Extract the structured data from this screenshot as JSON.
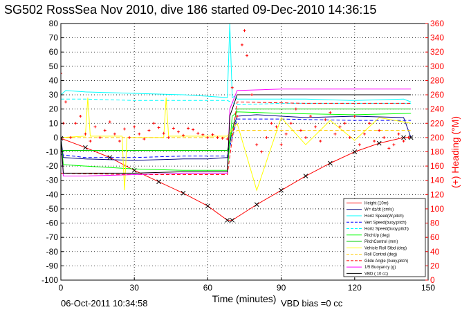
{
  "chart_data": {
    "type": "line",
    "title": "SG502 RossSea Nov 2010, dive 186 started 09-Dec-2010 14:36:15",
    "xlabel": "Time (minutes)",
    "ylabel_right": "(+) Heading (°M)",
    "xlim": [
      0,
      150
    ],
    "ylim": [
      -100,
      80
    ],
    "ylim_right": [
      0,
      360
    ],
    "xticks": [
      "0",
      "30",
      "60",
      "90",
      "120",
      "150"
    ],
    "yticks": [
      "80",
      "70",
      "60",
      "50",
      "40",
      "30",
      "20",
      "10",
      "0",
      "-10",
      "-20",
      "-30",
      "-40",
      "-50",
      "-60",
      "-70",
      "-80",
      "-90",
      "-100"
    ],
    "yticks_right": [
      "360",
      "340",
      "320",
      "300",
      "280",
      "260",
      "240",
      "220",
      "200",
      "180",
      "160",
      "140",
      "120",
      "100",
      "80",
      "60",
      "40",
      "20",
      "0"
    ],
    "grid": true,
    "legend_position": "bottom-right",
    "footer_left": "06-Oct-2011 10:34:58",
    "footer_right": "VBD bias =0 cc",
    "series": [
      {
        "name": "Height (10m)",
        "color": "#ff0000",
        "style": "solid",
        "x": [
          0,
          10,
          20,
          30,
          40,
          50,
          60,
          68,
          70,
          80,
          90,
          100,
          110,
          120,
          130,
          140,
          143
        ],
        "y": [
          -0.5,
          -7,
          -14,
          -23,
          -31,
          -39,
          -48,
          -58,
          -58,
          -47,
          -37,
          -27,
          -18,
          -10,
          -4,
          0,
          0
        ]
      },
      {
        "name": "W= dz/dt (cm/s)",
        "color": "#000080",
        "style": "solid",
        "x": [
          0,
          1,
          10,
          30,
          50,
          60,
          68,
          70,
          72,
          80,
          100,
          120,
          140,
          143
        ],
        "y": [
          0,
          -14,
          -15,
          -16,
          -15,
          -15,
          -14,
          5,
          15,
          16,
          14,
          15,
          14,
          0
        ]
      },
      {
        "name": "Horiz Speed(W,pitch)",
        "color": "#00ffff",
        "style": "solid",
        "x": [
          0,
          2,
          10,
          30,
          50,
          60,
          68,
          69,
          70,
          71,
          72,
          80,
          100,
          120,
          140,
          143
        ],
        "y": [
          30,
          33,
          32,
          31,
          30,
          29,
          28,
          80,
          28,
          29,
          27,
          27,
          27,
          26,
          27,
          25
        ]
      },
      {
        "name": "Vert Speed(buoy,pitch)",
        "color": "#0000ff",
        "style": "dashed",
        "x": [
          0,
          10,
          30,
          50,
          68,
          72,
          90,
          120,
          143
        ],
        "y": [
          -12,
          -14,
          -14,
          -13,
          -13,
          13,
          13,
          12,
          12
        ]
      },
      {
        "name": "Horiz Speed(buoy,pitch)",
        "color": "#00ffff",
        "style": "dashed",
        "x": [
          0,
          10,
          30,
          50,
          68,
          72,
          90,
          120,
          143
        ],
        "y": [
          27,
          27,
          26,
          26,
          26,
          23,
          24,
          24,
          24
        ]
      },
      {
        "name": "PitchUp (deg)",
        "color": "#00ff00",
        "style": "solid",
        "x": [
          0,
          1,
          10,
          30,
          50,
          68,
          70,
          72,
          90,
          120,
          143
        ],
        "y": [
          0,
          -19,
          -20,
          -22,
          -23,
          -23,
          15,
          18,
          17,
          16,
          17
        ]
      },
      {
        "name": "PitchControl (mm)",
        "color": "#00cc00",
        "style": "solid",
        "x": [
          0,
          10,
          30,
          50,
          68,
          72,
          90,
          120,
          143
        ],
        "y": [
          -9,
          -9,
          -9,
          -9,
          -9,
          20,
          20,
          20,
          20
        ]
      },
      {
        "name": "Vehicle Roll Stbd (deg)",
        "color": "#ffff00",
        "style": "solid",
        "x": [
          0,
          10,
          11,
          12,
          25,
          26,
          27,
          42,
          43,
          44,
          50,
          60,
          68,
          72,
          80,
          90,
          100,
          110,
          120,
          130,
          143
        ],
        "y": [
          0,
          1,
          28,
          1,
          1,
          -37,
          0,
          0,
          28,
          1,
          1,
          1,
          1,
          10,
          -37,
          14,
          -5,
          12,
          -2,
          14,
          10
        ]
      },
      {
        "name": "Roll Control (deg)",
        "color": "#ffcc00",
        "style": "dashed",
        "x": [
          0,
          30,
          68,
          72,
          100,
          143
        ],
        "y": [
          0,
          0,
          0,
          5,
          5,
          5
        ]
      },
      {
        "name": "Glide Angle (buoy,pitch)",
        "color": "#ff0000",
        "style": "dashed",
        "x": [
          0,
          30,
          68,
          72,
          100,
          143
        ],
        "y": [
          -25,
          -26,
          -26,
          25,
          24,
          24
        ]
      },
      {
        "name": "1/5 Buoyancy (g)",
        "color": "#ff00ff",
        "style": "solid",
        "x": [
          0,
          1,
          10,
          30,
          50,
          68,
          69,
          72,
          90,
          120,
          143
        ],
        "y": [
          0,
          -27,
          -27,
          -26,
          -25,
          -25,
          20,
          33,
          34,
          34,
          34
        ]
      },
      {
        "name": "VBD ( 10 cc)",
        "color": "#000000",
        "style": "solid",
        "x": [
          0,
          1,
          10,
          30,
          50,
          68,
          69,
          72,
          90,
          120,
          143
        ],
        "y": [
          0,
          -25,
          -25,
          -25,
          -24,
          -24,
          15,
          30,
          30,
          30,
          30
        ]
      }
    ],
    "heading_series": {
      "name": "Heading (°M)",
      "color": "#ff0000",
      "marker": "+",
      "axis": "right",
      "x": [
        0,
        1,
        2,
        4,
        6,
        8,
        10,
        12,
        14,
        16,
        18,
        20,
        22,
        24,
        26,
        28,
        30,
        32,
        34,
        36,
        38,
        40,
        42,
        44,
        46,
        48,
        50,
        52,
        54,
        56,
        58,
        60,
        62,
        64,
        66,
        68,
        70,
        72,
        74,
        75,
        76,
        78,
        80,
        82,
        84,
        86,
        88,
        90,
        92,
        94,
        96,
        98,
        100,
        102,
        104,
        106,
        108,
        110,
        112,
        114,
        116,
        118,
        120,
        122,
        124,
        126,
        128,
        130,
        132,
        134,
        136,
        138,
        140,
        142
      ],
      "y": [
        290,
        220,
        250,
        200,
        220,
        230,
        205,
        195,
        215,
        200,
        210,
        222,
        205,
        195,
        212,
        200,
        215,
        205,
        198,
        210,
        220,
        214,
        206,
        200,
        213,
        208,
        203,
        213,
        211,
        206,
        204,
        200,
        204,
        200,
        199,
        198,
        270,
        230,
        330,
        350,
        315,
        260,
        190,
        180,
        200,
        220,
        215,
        190,
        205,
        220,
        240,
        210,
        200,
        230,
        215,
        195,
        225,
        235,
        205,
        215,
        220,
        200,
        230,
        190,
        205,
        220,
        195,
        210,
        200,
        185,
        190,
        205,
        195,
        200
      ]
    }
  }
}
